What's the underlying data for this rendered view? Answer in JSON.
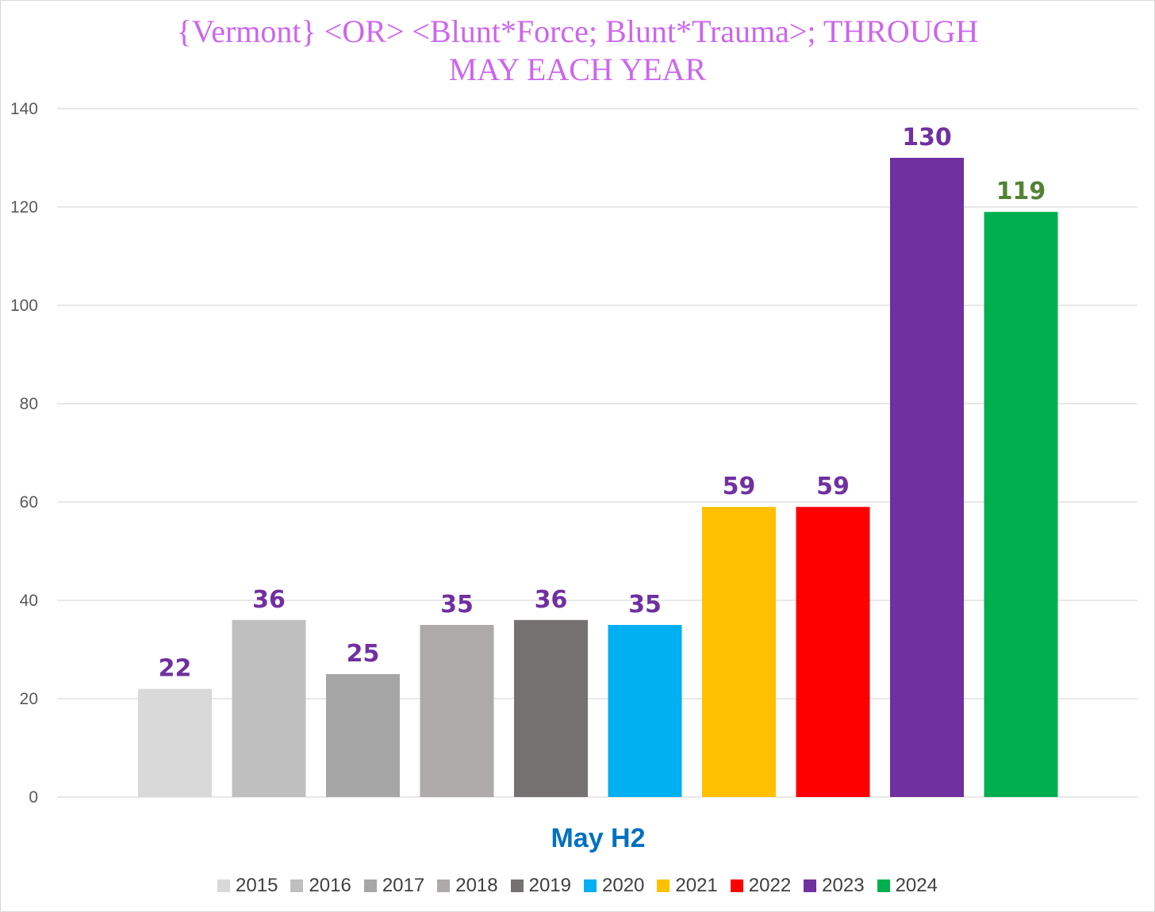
{
  "chart_data": {
    "type": "bar",
    "title_lines": [
      "{Vermont}  <OR> <Blunt*Force; Blunt*Trauma>; THROUGH",
      "MAY EACH YEAR"
    ],
    "categories": [
      "May H2"
    ],
    "xlabel": "May H2",
    "ylim": [
      0,
      140
    ],
    "yticks": [
      0,
      20,
      40,
      60,
      80,
      100,
      120,
      140
    ],
    "grid": true,
    "legend_position": "bottom",
    "series": [
      {
        "name": "2015",
        "values": [
          22
        ],
        "color": "#d9d9d9",
        "label_color": "#7030a0"
      },
      {
        "name": "2016",
        "values": [
          36
        ],
        "color": "#bfbfbf",
        "label_color": "#7030a0"
      },
      {
        "name": "2017",
        "values": [
          25
        ],
        "color": "#a6a6a6",
        "label_color": "#7030a0"
      },
      {
        "name": "2018",
        "values": [
          35
        ],
        "color": "#aeaaaa",
        "label_color": "#7030a0"
      },
      {
        "name": "2019",
        "values": [
          36
        ],
        "color": "#767171",
        "label_color": "#7030a0"
      },
      {
        "name": "2020",
        "values": [
          35
        ],
        "color": "#00b0f0",
        "label_color": "#7030a0"
      },
      {
        "name": "2021",
        "values": [
          59
        ],
        "color": "#ffc000",
        "label_color": "#7030a0"
      },
      {
        "name": "2022",
        "values": [
          59
        ],
        "color": "#ff0000",
        "label_color": "#7030a0"
      },
      {
        "name": "2023",
        "values": [
          130
        ],
        "color": "#7030a0",
        "label_color": "#7030a0"
      },
      {
        "name": "2024",
        "values": [
          119
        ],
        "color": "#00b050",
        "label_color": "#548235"
      }
    ]
  }
}
